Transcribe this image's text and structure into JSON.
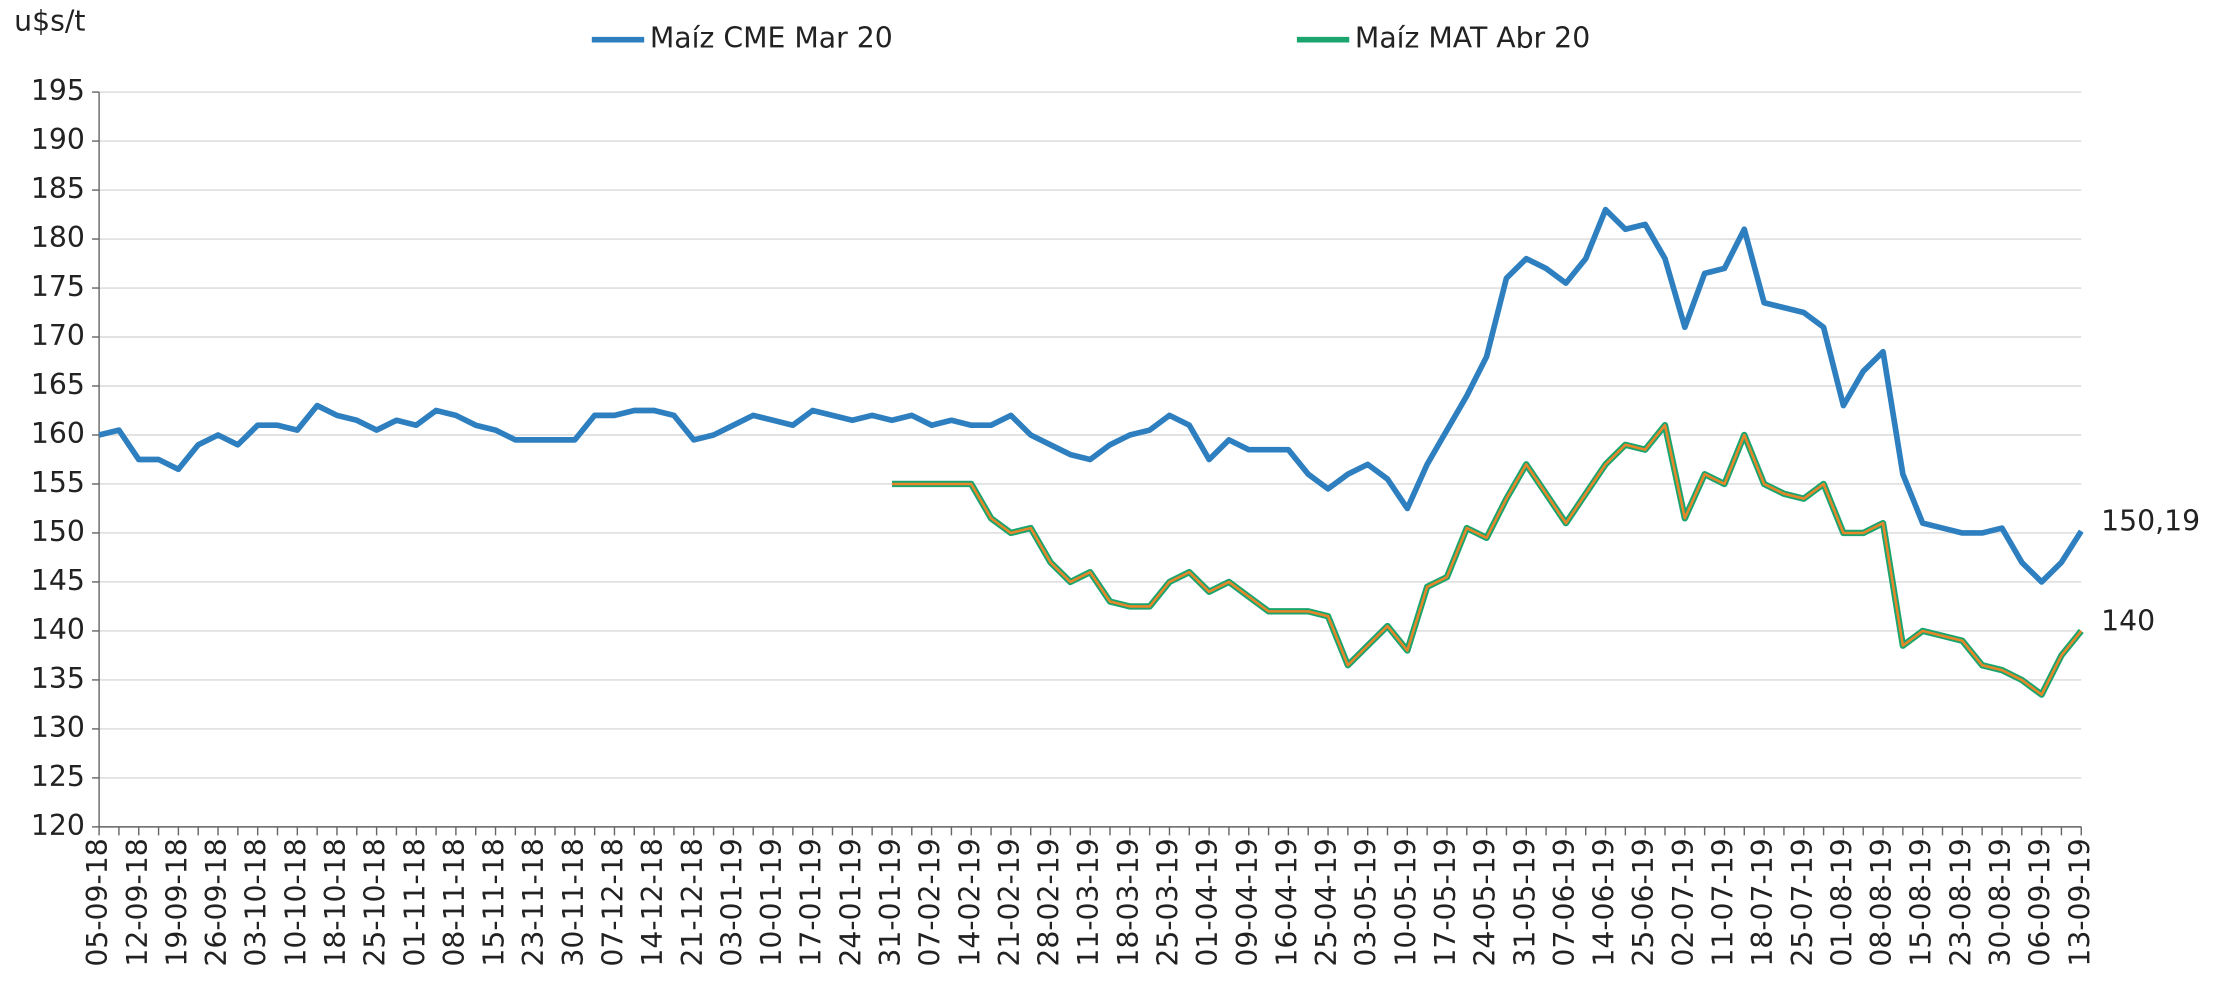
{
  "chart_data": {
    "type": "line",
    "y_label": "u$s/t",
    "categories": [
      "05-09-18",
      null,
      "12-09-18",
      null,
      "19-09-18",
      null,
      "26-09-18",
      null,
      "03-10-18",
      null,
      "10-10-18",
      null,
      "18-10-18",
      null,
      "25-10-18",
      null,
      "01-11-18",
      null,
      "08-11-18",
      null,
      "15-11-18",
      null,
      "23-11-18",
      null,
      "30-11-18",
      null,
      "07-12-18",
      null,
      "14-12-18",
      null,
      "21-12-18",
      null,
      "03-01-19",
      null,
      "10-01-19",
      null,
      "17-01-19",
      null,
      "24-01-19",
      null,
      "31-01-19",
      null,
      "07-02-19",
      null,
      "14-02-19",
      null,
      "21-02-19",
      null,
      "28-02-19",
      null,
      "11-03-19",
      null,
      "18-03-19",
      null,
      "25-03-19",
      null,
      "01-04-19",
      null,
      "09-04-19",
      null,
      "16-04-19",
      null,
      "25-04-19",
      null,
      "03-05-19",
      null,
      "10-05-19",
      null,
      "17-05-19",
      null,
      "24-05-19",
      null,
      "31-05-19",
      null,
      "07-06-19",
      null,
      "14-06-19",
      null,
      "25-06-19",
      null,
      "02-07-19",
      null,
      "11-07-19",
      null,
      "18-07-19",
      null,
      "25-07-19",
      null,
      "01-08-19",
      null,
      "08-08-19",
      null,
      "15-08-19",
      null,
      "23-08-19",
      null,
      "30-08-19",
      null,
      "06-09-19",
      null,
      "13-09-19"
    ],
    "series": [
      {
        "name": "Maíz CME Mar 20",
        "color": "#2e7fbf",
        "end_label": "150,19",
        "values": [
          160,
          160.5,
          157.5,
          157.5,
          156.5,
          159,
          160,
          159,
          161,
          161,
          160.5,
          163,
          162,
          161.5,
          160.5,
          161.5,
          161,
          162.5,
          162,
          161,
          160.5,
          159.5,
          159.5,
          159.5,
          159.5,
          162,
          162,
          162.5,
          162.5,
          162,
          159.5,
          160,
          161,
          162,
          161.5,
          161,
          162.5,
          162,
          161.5,
          162,
          161.5,
          162,
          161,
          161.5,
          161,
          161,
          162,
          160,
          159,
          158,
          157.5,
          159,
          160,
          160.5,
          162,
          161,
          157.5,
          159.5,
          158.5,
          158.5,
          158.5,
          156,
          154.5,
          156,
          157,
          155.5,
          152.5,
          157,
          160.5,
          164,
          168,
          176,
          178,
          177,
          175.5,
          178,
          183,
          181,
          181.5,
          178,
          171,
          176.5,
          177,
          181,
          173.5,
          173,
          172.5,
          171,
          163,
          166.5,
          168.5,
          156,
          151,
          150.5,
          150,
          150,
          150.5,
          147,
          145,
          147,
          150.19
        ]
      },
      {
        "name": "Maíz MAT Abr 20",
        "color": "#1aa56e",
        "inner_color": "#e8862a",
        "end_label": "140",
        "values": [
          null,
          null,
          null,
          null,
          null,
          null,
          null,
          null,
          null,
          null,
          null,
          null,
          null,
          null,
          null,
          null,
          null,
          null,
          null,
          null,
          null,
          null,
          null,
          null,
          null,
          null,
          null,
          null,
          null,
          null,
          null,
          null,
          null,
          null,
          null,
          null,
          null,
          null,
          null,
          null,
          155,
          155,
          155,
          155,
          155,
          151.5,
          150,
          150.5,
          147,
          145,
          146,
          143,
          142.5,
          142.5,
          145,
          146,
          144,
          145,
          143.5,
          142,
          142,
          142,
          141.5,
          136.5,
          138.5,
          140.5,
          138,
          144.5,
          145.5,
          150.5,
          149.5,
          153.5,
          157,
          154,
          151,
          154,
          157,
          159,
          158.5,
          161,
          151.5,
          156,
          155,
          160,
          155,
          154,
          153.5,
          155,
          150,
          150,
          151,
          138.5,
          140,
          139.5,
          139,
          136.5,
          136,
          135,
          133.5,
          137.5,
          140
        ]
      }
    ],
    "ylim": [
      120,
      195
    ],
    "yticks": [
      120,
      125,
      130,
      135,
      140,
      145,
      150,
      155,
      160,
      165,
      170,
      175,
      180,
      185,
      190,
      195
    ],
    "grid": true
  }
}
